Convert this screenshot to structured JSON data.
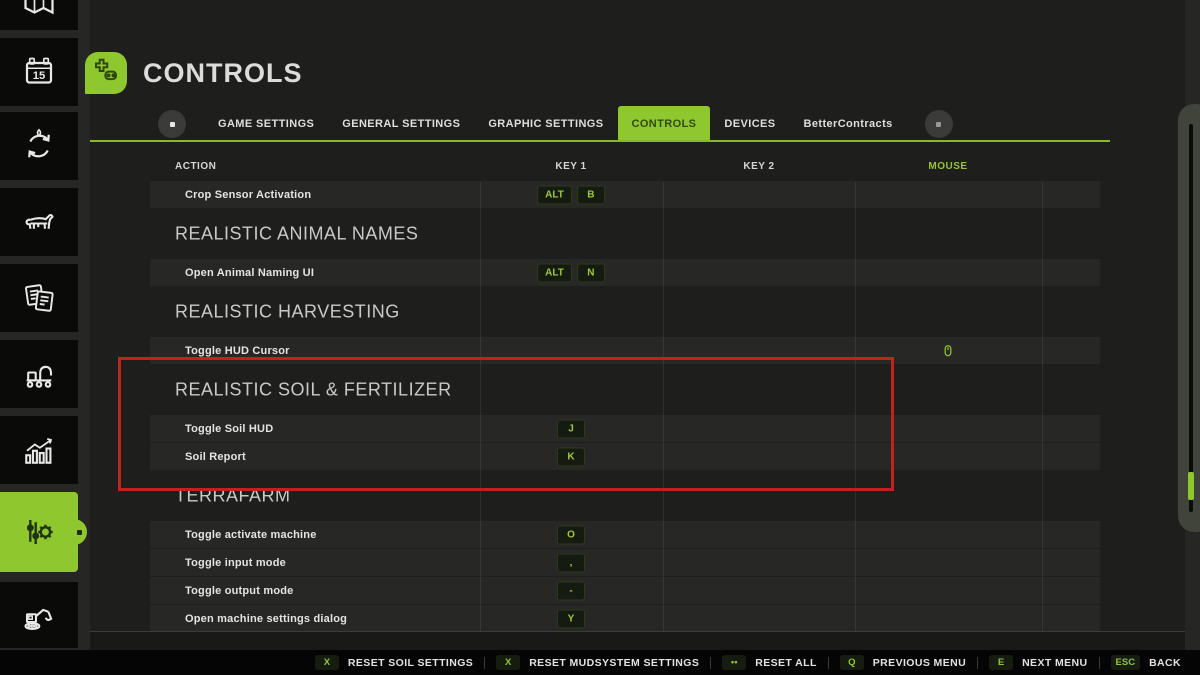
{
  "colors": {
    "accent": "#8ec72e",
    "annotation": "#c1221c",
    "key_text": "#9fca3a",
    "mouse_header": "#96c32f",
    "sidebar_item_bg": "#0a0a08",
    "panel_bg": "#1e1e1c"
  },
  "sidebar": {
    "items": [
      {
        "icon": "map-icon"
      },
      {
        "icon": "calendar-icon",
        "badge": "15"
      },
      {
        "icon": "crop-rotation-icon"
      },
      {
        "icon": "animals-icon"
      },
      {
        "icon": "contracts-icon"
      },
      {
        "icon": "production-icon"
      },
      {
        "icon": "statistics-icon"
      },
      {
        "icon": "settings-icon",
        "active": true
      },
      {
        "icon": "construction-icon"
      }
    ]
  },
  "header": {
    "title": "CONTROLS",
    "icon": "gamepad-icon"
  },
  "tabs": {
    "items": [
      {
        "label": "GAME SETTINGS",
        "active": false
      },
      {
        "label": "GENERAL SETTINGS",
        "active": false
      },
      {
        "label": "GRAPHIC SETTINGS",
        "active": false
      },
      {
        "label": "CONTROLS",
        "active": true
      },
      {
        "label": "DEVICES",
        "active": false
      },
      {
        "label": "BetterContracts",
        "active": false
      }
    ]
  },
  "table": {
    "columns": [
      {
        "label": "ACTION",
        "accent": false
      },
      {
        "label": "KEY 1",
        "accent": false
      },
      {
        "label": "KEY 2",
        "accent": false
      },
      {
        "label": "MOUSE",
        "accent": true
      }
    ],
    "rows": [
      {
        "type": "action",
        "action": "Crop Sensor Activation",
        "key1": [
          "ALT",
          "B"
        ],
        "key2": [],
        "mouse": ""
      },
      {
        "type": "section",
        "label": "REALISTIC ANIMAL NAMES"
      },
      {
        "type": "action",
        "action": "Open Animal Naming UI",
        "key1": [
          "ALT",
          "N"
        ],
        "key2": [],
        "mouse": ""
      },
      {
        "type": "section",
        "label": "REALISTIC HARVESTING"
      },
      {
        "type": "action",
        "action": "Toggle HUD Cursor",
        "key1": [],
        "key2": [],
        "mouse": "mouse-icon"
      },
      {
        "type": "section",
        "label": "REALISTIC SOIL & FERTILIZER"
      },
      {
        "type": "action",
        "action": "Toggle Soil HUD",
        "key1": [
          "J"
        ],
        "key2": [],
        "mouse": ""
      },
      {
        "type": "action",
        "action": "Soil Report",
        "key1": [
          "K"
        ],
        "key2": [],
        "mouse": ""
      },
      {
        "type": "section",
        "label": "TERRAFARM"
      },
      {
        "type": "action",
        "action": "Toggle activate machine",
        "key1": [
          "O"
        ],
        "key2": [],
        "mouse": ""
      },
      {
        "type": "action",
        "action": "Toggle input mode",
        "key1": [
          ","
        ],
        "key2": [],
        "mouse": ""
      },
      {
        "type": "action",
        "action": "Toggle output mode",
        "key1": [
          "-"
        ],
        "key2": [],
        "mouse": ""
      },
      {
        "type": "action",
        "action": "Open machine settings dialog",
        "key1": [
          "Y"
        ],
        "key2": [],
        "mouse": ""
      }
    ]
  },
  "annotation": {
    "kind": "highlight-box",
    "target": "REALISTIC SOIL & FERTILIZER"
  },
  "bottom_bar": {
    "items": [
      {
        "key": "X",
        "label": "RESET SOIL SETTINGS"
      },
      {
        "key": "X",
        "label": "RESET MUDSYSTEM SETTINGS"
      },
      {
        "key": "••",
        "label": "RESET ALL"
      },
      {
        "key": "Q",
        "label": "PREVIOUS MENU"
      },
      {
        "key": "E",
        "label": "NEXT MENU"
      },
      {
        "key": "ESC",
        "label": "BACK"
      }
    ]
  }
}
